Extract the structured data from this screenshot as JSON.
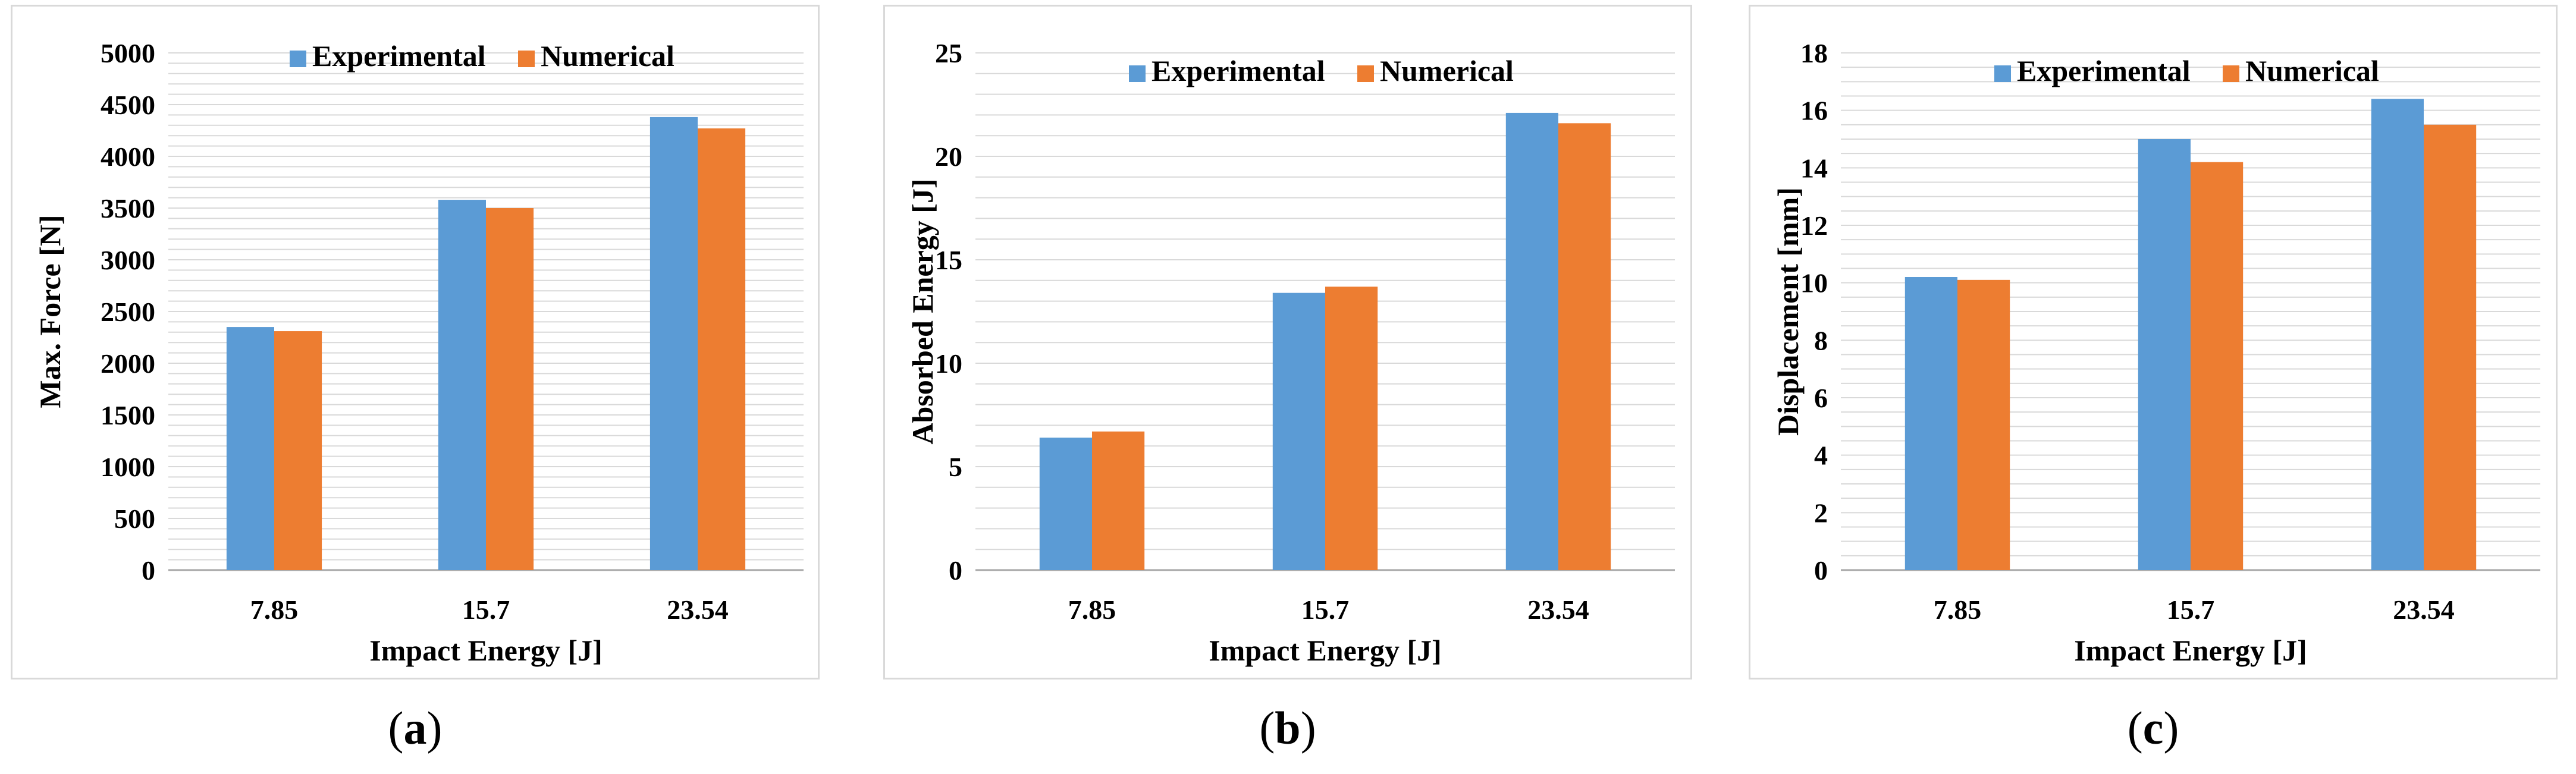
{
  "colors": {
    "experimental": "#5b9bd5",
    "numerical": "#ed7d31",
    "grid": "#d9d9d9",
    "axis": "#a6a6a6"
  },
  "chart_data": [
    {
      "type": "bar",
      "panel": "a",
      "categories": [
        "7.85",
        "15.7",
        "23.54"
      ],
      "series": [
        {
          "name": "Experimental",
          "values": [
            2350,
            3580,
            4380
          ]
        },
        {
          "name": "Numerical",
          "values": [
            2310,
            3500,
            4270
          ]
        }
      ],
      "xlabel": "Impact Energy [J]",
      "ylabel": "Max. Force [N]",
      "ylim": [
        0,
        5000
      ],
      "yticks": [
        "0",
        "500",
        "1000",
        "1500",
        "2000",
        "2500",
        "3000",
        "3500",
        "4000",
        "4500",
        "5000"
      ],
      "minor_grid_step": 100,
      "legend": "top"
    },
    {
      "type": "bar",
      "panel": "b",
      "categories": [
        "7.85",
        "15.7",
        "23.54"
      ],
      "series": [
        {
          "name": "Experimental",
          "values": [
            6.4,
            13.4,
            22.1
          ]
        },
        {
          "name": "Numerical",
          "values": [
            6.7,
            13.7,
            21.6
          ]
        }
      ],
      "xlabel": "Impact Energy [J]",
      "ylabel": "Absorbed Energy [J]",
      "ylim": [
        0,
        25
      ],
      "yticks": [
        "0",
        "5",
        "10",
        "15",
        "20",
        "25"
      ],
      "minor_grid_step": 1,
      "legend": "top"
    },
    {
      "type": "bar",
      "panel": "c",
      "categories": [
        "7.85",
        "15.7",
        "23.54"
      ],
      "series": [
        {
          "name": "Experimental",
          "values": [
            10.2,
            15.0,
            16.4
          ]
        },
        {
          "name": "Numerical",
          "values": [
            10.1,
            14.2,
            15.5
          ]
        }
      ],
      "xlabel": "Impact Energy [J]",
      "ylabel": "Displacement [mm]",
      "ylim": [
        0,
        18
      ],
      "yticks": [
        "0",
        "2",
        "4",
        "6",
        "8",
        "10",
        "12",
        "14",
        "16",
        "18"
      ],
      "minor_grid_step": 0.5,
      "legend": "top"
    }
  ],
  "captions": [
    {
      "open": "(",
      "letter": "a",
      "close": ")"
    },
    {
      "open": "(",
      "letter": "b",
      "close": ")"
    },
    {
      "open": "(",
      "letter": "c",
      "close": ")"
    }
  ]
}
